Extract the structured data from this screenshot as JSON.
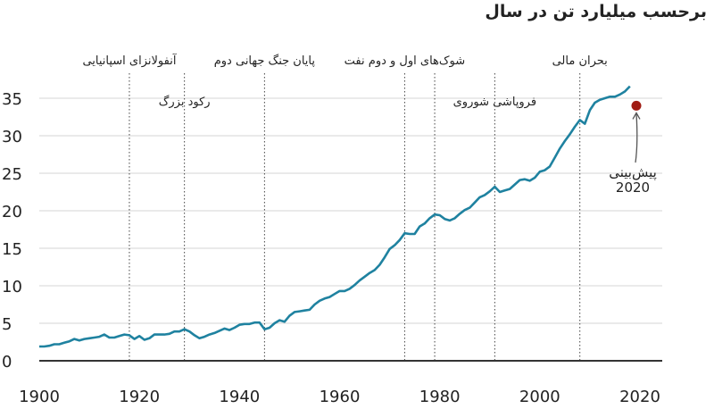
{
  "chart_data": {
    "type": "line",
    "title": "برحسب میلیارد تن در سال",
    "xlabel": "",
    "ylabel": "",
    "xlim": [
      1900,
      2020
    ],
    "ylim": [
      0,
      37
    ],
    "x_ticks": [
      "1900",
      "1920",
      "1940",
      "1960",
      "1980",
      "2000",
      "2020"
    ],
    "y_ticks": [
      "0",
      "5",
      "10",
      "15",
      "20",
      "25",
      "30",
      "35"
    ],
    "grid": true,
    "colors": {
      "line": "#1f82a0",
      "forecast": "#a01c14",
      "events": "#444444"
    },
    "series": [
      {
        "x": [
          1900,
          1901,
          1902,
          1903,
          1904,
          1905,
          1906,
          1907,
          1908,
          1909,
          1910,
          1911,
          1912,
          1913,
          1914,
          1915,
          1916,
          1917,
          1918,
          1919,
          1920,
          1921,
          1922,
          1923,
          1924,
          1925,
          1926,
          1927,
          1928,
          1929,
          1930,
          1931,
          1932,
          1933,
          1934,
          1935,
          1936,
          1937,
          1938,
          1939,
          1940,
          1941,
          1942,
          1943,
          1944,
          1945,
          1946,
          1947,
          1948,
          1949,
          1950,
          1951,
          1952,
          1953,
          1954,
          1955,
          1956,
          1957,
          1958,
          1959,
          1960,
          1961,
          1962,
          1963,
          1964,
          1965,
          1966,
          1967,
          1968,
          1969,
          1970,
          1971,
          1972,
          1973,
          1974,
          1975,
          1976,
          1977,
          1978,
          1979,
          1980,
          1981,
          1982,
          1983,
          1984,
          1985,
          1986,
          1987,
          1988,
          1989,
          1990,
          1991,
          1992,
          1993,
          1994,
          1995,
          1996,
          1997,
          1998,
          1999,
          2000,
          2001,
          2002,
          2003,
          2004,
          2005,
          2006,
          2007,
          2008,
          2009,
          2010,
          2011,
          2012,
          2013,
          2014,
          2015,
          2016,
          2017,
          2018
        ],
        "values": [
          1.9,
          1.9,
          2.0,
          2.2,
          2.2,
          2.4,
          2.6,
          2.9,
          2.7,
          2.9,
          3.0,
          3.1,
          3.2,
          3.5,
          3.1,
          3.1,
          3.3,
          3.5,
          3.4,
          2.9,
          3.3,
          2.8,
          3.0,
          3.5,
          3.5,
          3.5,
          3.6,
          3.9,
          3.9,
          4.2,
          3.9,
          3.4,
          3.0,
          3.2,
          3.5,
          3.7,
          4.0,
          4.3,
          4.1,
          4.4,
          4.8,
          4.9,
          4.9,
          5.1,
          5.1,
          4.2,
          4.4,
          5.0,
          5.4,
          5.2,
          6.0,
          6.5,
          6.6,
          6.7,
          6.8,
          7.5,
          8.0,
          8.3,
          8.5,
          8.9,
          9.3,
          9.3,
          9.6,
          10.1,
          10.7,
          11.2,
          11.7,
          12.1,
          12.8,
          13.8,
          14.9,
          15.4,
          16.1,
          17.0,
          16.9,
          16.9,
          17.9,
          18.3,
          19.0,
          19.5,
          19.4,
          18.9,
          18.7,
          19.0,
          19.6,
          20.1,
          20.4,
          21.1,
          21.8,
          22.1,
          22.6,
          23.2,
          22.5,
          22.7,
          22.9,
          23.5,
          24.1,
          24.2,
          24.0,
          24.4,
          25.2,
          25.4,
          25.9,
          27.1,
          28.3,
          29.3,
          30.2,
          31.2,
          32.1,
          31.6,
          33.4,
          34.4,
          34.8,
          35.0,
          35.2,
          35.2,
          35.5,
          35.9,
          36.6
        ]
      }
    ],
    "forecast": {
      "x": 2020,
      "value": 34.0,
      "label_line1": "پیش‌بینی",
      "label_line2": "2020"
    },
    "events": [
      {
        "year": 1918,
        "label": "آنفولانزای اسپانیایی",
        "label_row": 1
      },
      {
        "year": 1929,
        "label": "رکود بزرگ",
        "label_row": 2
      },
      {
        "year": 1945,
        "label": "پایان جنگ جهانی دوم",
        "label_row": 1
      },
      {
        "year": 1973,
        "label": "شوک‌های اول و دوم نفت",
        "label_row": 1
      },
      {
        "year": 1979,
        "label": "",
        "label_row": 1
      },
      {
        "year": 1991,
        "label": "فروپاشی شوروی",
        "label_row": 2
      },
      {
        "year": 2008,
        "label": "بحران مالی",
        "label_row": 1
      }
    ]
  }
}
